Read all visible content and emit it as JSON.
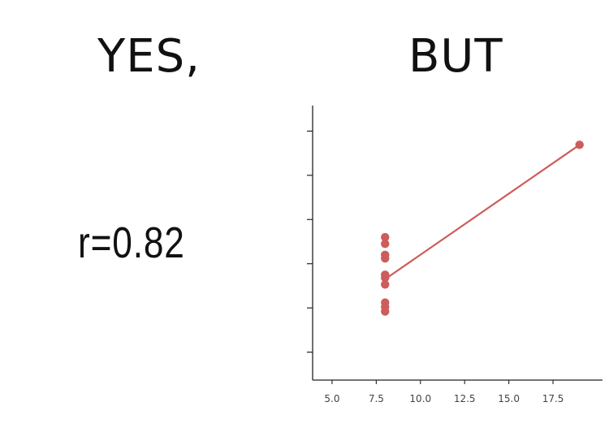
{
  "left_panel": {
    "heading": "YES,",
    "correlation_text": "r=0.82"
  },
  "right_panel": {
    "heading": "BUT"
  },
  "chart_data": {
    "type": "scatter",
    "title": "",
    "xlabel": "",
    "ylabel": "",
    "xlim": [
      3.9,
      20.3
    ],
    "ylim": [
      -1,
      6
    ],
    "x_ticks": [
      5.0,
      7.5,
      10.0,
      12.5,
      15.0,
      17.5
    ],
    "x_tick_labels": [
      "5.0",
      "7.5",
      "10.0",
      "12.5",
      "15.0",
      "17.5"
    ],
    "y_ticks": [
      0,
      1,
      2,
      3,
      4,
      5
    ],
    "y_tick_labels_shown": false,
    "grid": false,
    "point_color": "#cd5c5c",
    "points": [
      {
        "x": 8,
        "y": 2.6
      },
      {
        "x": 8,
        "y": 2.45
      },
      {
        "x": 8,
        "y": 2.2
      },
      {
        "x": 8,
        "y": 2.12
      },
      {
        "x": 8,
        "y": 1.75
      },
      {
        "x": 8,
        "y": 1.68
      },
      {
        "x": 8,
        "y": 1.53
      },
      {
        "x": 8,
        "y": 1.12
      },
      {
        "x": 8,
        "y": 1.02
      },
      {
        "x": 8,
        "y": 0.92
      },
      {
        "x": 19,
        "y": 4.69
      }
    ],
    "fit_line": {
      "x": [
        8,
        19
      ],
      "y": [
        1.65,
        4.69
      ]
    }
  }
}
